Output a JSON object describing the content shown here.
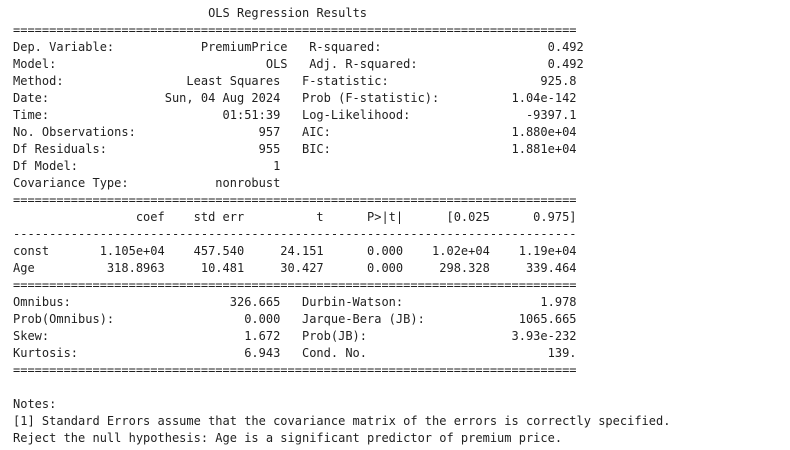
{
  "regression_report": {
    "title": "OLS Regression Results",
    "separator_double": "==============================================================================",
    "separator_single": "------------------------------------------------------------------------------",
    "summary_rows": [
      "Dep. Variable:            PremiumPrice   R-squared:                       0.492",
      "Model:                             OLS   Adj. R-squared:                  0.492",
      "Method:                 Least Squares   F-statistic:                     925.8",
      "Date:                Sun, 04 Aug 2024   Prob (F-statistic):          1.04e-142",
      "Time:                        01:51:39   Log-Likelihood:                -9397.1",
      "No. Observations:                 957   AIC:                         1.880e+04",
      "Df Residuals:                     955   BIC:                         1.881e+04",
      "Df Model:                           1",
      "Covariance Type:            nonrobust"
    ],
    "coef_header": "                 coef    std err          t      P>|t|      [0.025      0.975]",
    "coef_rows": [
      "const       1.105e+04    457.540     24.151      0.000    1.02e+04    1.19e+04",
      "Age          318.8963     10.481     30.427      0.000     298.328     339.464"
    ],
    "diagnostic_rows": [
      "Omnibus:                      326.665   Durbin-Watson:                   1.978",
      "Prob(Omnibus):                  0.000   Jarque-Bera (JB):             1065.665",
      "Skew:                           1.672   Prob(JB):                    3.93e-232",
      "Kurtosis:                       6.943   Cond. No.                         139."
    ],
    "notes_heading": "Notes:",
    "notes": [
      "[1] Standard Errors assume that the covariance matrix of the errors is correctly specified."
    ]
  },
  "conclusion": "Reject the null hypothesis: Age is a significant predictor of premium price."
}
